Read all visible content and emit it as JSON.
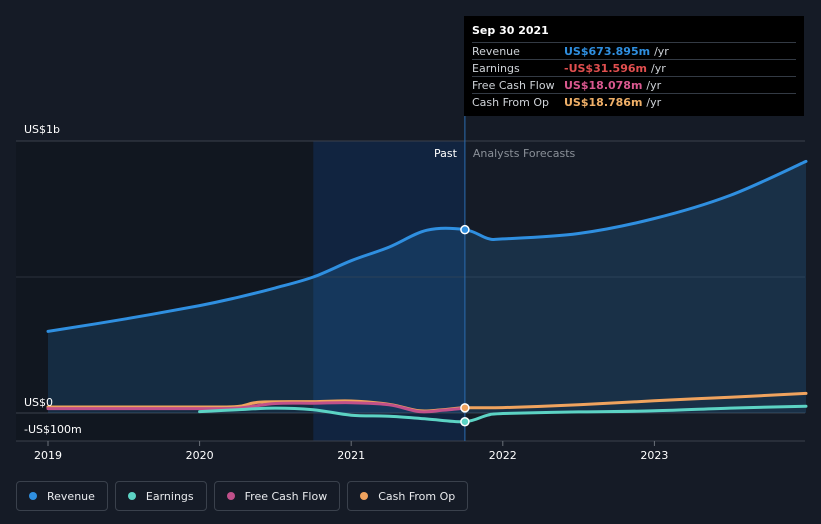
{
  "tooltip": {
    "date": "Sep 30 2021",
    "rows": [
      {
        "name": "Revenue",
        "value": "US$673.895m",
        "unit": "/yr",
        "color": "#2f8fe0"
      },
      {
        "name": "Earnings",
        "value": "-US$31.596m",
        "unit": "/yr",
        "color": "#e14f4f"
      },
      {
        "name": "Free Cash Flow",
        "value": "US$18.078m",
        "unit": "/yr",
        "color": "#d9588f"
      },
      {
        "name": "Cash From Op",
        "value": "US$18.786m",
        "unit": "/yr",
        "color": "#f0b068"
      }
    ]
  },
  "legend": [
    {
      "label": "Revenue",
      "color": "#2f8fe0"
    },
    {
      "label": "Earnings",
      "color": "#5cd3c4"
    },
    {
      "label": "Free Cash Flow",
      "color": "#c0508a"
    },
    {
      "label": "Cash From Op",
      "color": "#f0a35e"
    }
  ],
  "chart_data": {
    "type": "line",
    "title": "",
    "xlabel": "",
    "ylabel": "",
    "ylim": [
      -100,
      1000
    ],
    "xlim": [
      2019,
      2024
    ],
    "y_tick_labels": [
      "US$1b",
      "US$0",
      "-US$100m"
    ],
    "x_tick_labels": [
      "2019",
      "2020",
      "2021",
      "2022",
      "2023"
    ],
    "past_label": "Past",
    "forecast_label": "Analysts Forecasts",
    "divider_x": 2021.75,
    "highlight_start": 2020.75,
    "series": [
      {
        "name": "Revenue",
        "color": "#2f8fe0",
        "fill": true,
        "points": [
          [
            2019,
            300
          ],
          [
            2019.5,
            345
          ],
          [
            2020,
            395
          ],
          [
            2020.25,
            425
          ],
          [
            2020.5,
            460
          ],
          [
            2020.75,
            500
          ],
          [
            2021,
            560
          ],
          [
            2021.25,
            610
          ],
          [
            2021.5,
            672
          ],
          [
            2021.75,
            674
          ],
          [
            2021.9,
            642
          ],
          [
            2022,
            640
          ],
          [
            2022.5,
            660
          ],
          [
            2023,
            715
          ],
          [
            2023.5,
            800
          ],
          [
            2024,
            925
          ]
        ]
      },
      {
        "name": "Earnings",
        "color": "#5cd3c4",
        "fill": false,
        "points": [
          [
            2020,
            5
          ],
          [
            2020.25,
            12
          ],
          [
            2020.5,
            18
          ],
          [
            2020.75,
            12
          ],
          [
            2021,
            -8
          ],
          [
            2021.25,
            -12
          ],
          [
            2021.5,
            -22
          ],
          [
            2021.75,
            -32
          ],
          [
            2021.9,
            -8
          ],
          [
            2022,
            -2
          ],
          [
            2022.5,
            4
          ],
          [
            2023,
            8
          ],
          [
            2023.5,
            18
          ],
          [
            2024,
            25
          ]
        ]
      },
      {
        "name": "Free Cash Flow",
        "color": "#c0508a",
        "fill": false,
        "points": [
          [
            2019,
            16
          ],
          [
            2020,
            16
          ],
          [
            2020.25,
            18
          ],
          [
            2020.5,
            35
          ],
          [
            2020.75,
            36
          ],
          [
            2021,
            38
          ],
          [
            2021.25,
            30
          ],
          [
            2021.45,
            5
          ],
          [
            2021.6,
            10
          ],
          [
            2021.75,
            18
          ]
        ]
      },
      {
        "name": "Cash From Op",
        "color": "#f0a35e",
        "fill": false,
        "points": [
          [
            2019,
            22
          ],
          [
            2020,
            22
          ],
          [
            2020.25,
            24
          ],
          [
            2020.4,
            40
          ],
          [
            2020.75,
            42
          ],
          [
            2021,
            44
          ],
          [
            2021.25,
            32
          ],
          [
            2021.45,
            8
          ],
          [
            2021.6,
            12
          ],
          [
            2021.75,
            19
          ],
          [
            2022,
            20
          ],
          [
            2022.5,
            30
          ],
          [
            2023,
            45
          ],
          [
            2023.5,
            58
          ],
          [
            2024,
            72
          ]
        ]
      }
    ]
  }
}
